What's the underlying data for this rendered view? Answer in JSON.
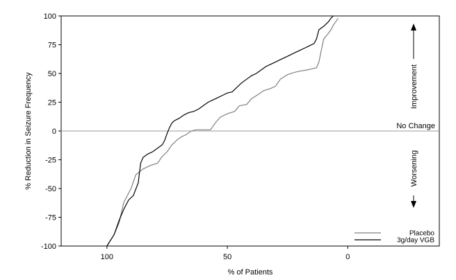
{
  "chart_data": {
    "type": "line",
    "xlabel": "% of Patients",
    "ylabel": "% Reduction in Seizure Frequency",
    "xlim": [
      119,
      -38
    ],
    "ylim": [
      -100,
      100
    ],
    "x_reversed": true,
    "xticks": [
      100,
      50,
      0
    ],
    "yticks": [
      100,
      75,
      50,
      25,
      0,
      -25,
      -50,
      -75,
      -100
    ],
    "reference_line": {
      "y": 0,
      "label": "No Change"
    },
    "annotations": {
      "up": "Improvement",
      "down": "Worsening"
    },
    "legend_position": "bottom-right",
    "series": [
      {
        "name": "Placebo",
        "color": "#7f7f7f",
        "x": [
          100,
          97,
          95,
          93,
          90,
          88,
          85,
          82,
          79,
          77,
          75,
          73,
          71,
          69,
          67,
          65,
          63,
          60,
          57,
          55,
          53,
          50,
          47,
          45,
          42,
          40,
          37,
          35,
          32,
          30,
          28,
          25,
          22,
          20,
          17,
          15,
          13,
          12,
          11,
          10,
          8,
          7,
          6,
          5,
          4
        ],
        "y": [
          -100,
          -90,
          -80,
          -62,
          -50,
          -38,
          -33,
          -30,
          -28,
          -22,
          -18,
          -12,
          -8,
          -5,
          -3,
          0,
          1,
          1,
          1,
          7,
          12,
          15,
          17,
          22,
          23,
          28,
          32,
          35,
          37,
          39,
          45,
          49,
          51,
          52,
          53,
          54,
          55,
          60,
          70,
          80,
          85,
          88,
          92,
          95,
          98
        ]
      },
      {
        "name": "3g/day VGB",
        "color": "#000000",
        "x": [
          100,
          97,
          95,
          93,
          91,
          89,
          87,
          86,
          85,
          83,
          81,
          79,
          77,
          76,
          75,
          74,
          73,
          72,
          70,
          68,
          66,
          64,
          62,
          60,
          58,
          56,
          54,
          52,
          50,
          48,
          46,
          44,
          42,
          40,
          38,
          36,
          34,
          32,
          30,
          28,
          26,
          24,
          22,
          20,
          18,
          16,
          14,
          13,
          12,
          10,
          8,
          7,
          6
        ],
        "y": [
          -100,
          -90,
          -78,
          -68,
          -60,
          -56,
          -45,
          -28,
          -23,
          -20,
          -18,
          -15,
          -12,
          -8,
          -2,
          3,
          7,
          9,
          11,
          14,
          16,
          17,
          19,
          22,
          25,
          27,
          29,
          31,
          33,
          34,
          38,
          42,
          45,
          48,
          50,
          53,
          56,
          58,
          60,
          62,
          64,
          66,
          68,
          70,
          72,
          74,
          76,
          80,
          88,
          91,
          95,
          98,
          100
        ]
      }
    ]
  }
}
